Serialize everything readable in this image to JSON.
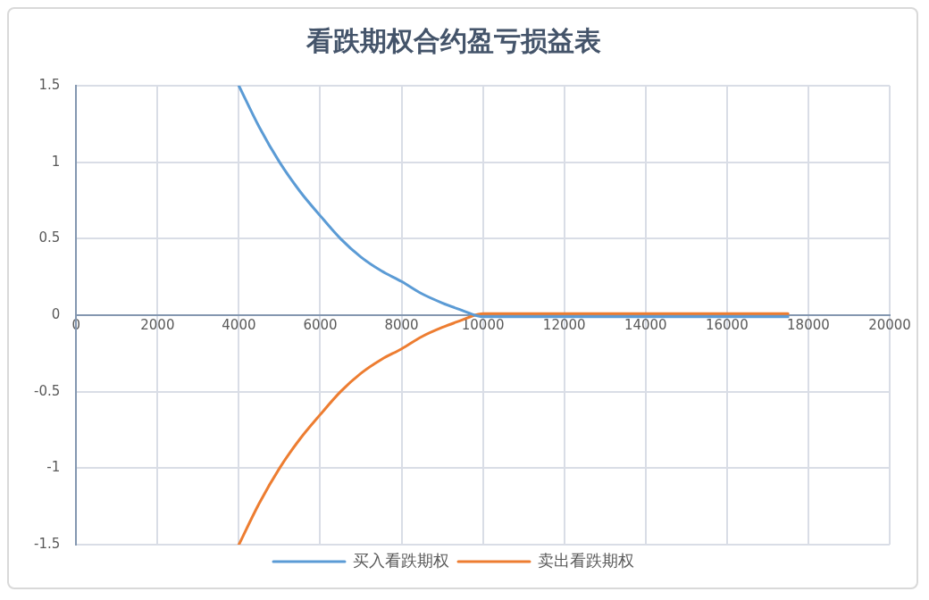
{
  "chart_data": {
    "type": "line",
    "title": "看跌期权合约盈亏损益表",
    "xlim": [
      0,
      20000
    ],
    "xticks": [
      0,
      2000,
      4000,
      6000,
      8000,
      10000,
      12000,
      14000,
      16000,
      18000,
      20000
    ],
    "ylim": [
      -1.5,
      1.5
    ],
    "yticks": [
      -1.5,
      -1,
      -0.5,
      0,
      0.5,
      1,
      1.5
    ],
    "grid": true,
    "legend": "bottom",
    "marker": "none",
    "line_style": "solid",
    "series": [
      {
        "name": "买入看跌期权",
        "color": "#5b9bd5",
        "x": [
          4000,
          4500,
          5000,
          5500,
          6000,
          6500,
          7000,
          7500,
          8000,
          8500,
          9000,
          9500,
          9800,
          10000,
          17500
        ],
        "values": [
          1.5,
          1.23,
          1.0,
          0.81,
          0.65,
          0.5,
          0.38,
          0.29,
          0.22,
          0.14,
          0.08,
          0.03,
          0,
          -0.01,
          -0.01
        ]
      },
      {
        "name": "卖出看跌期权",
        "color": "#ed7d31",
        "x": [
          4000,
          4500,
          5000,
          5500,
          6000,
          6500,
          7000,
          7500,
          8000,
          8500,
          9000,
          9500,
          9800,
          10000,
          17500
        ],
        "values": [
          -1.5,
          -1.23,
          -1.0,
          -0.81,
          -0.65,
          -0.5,
          -0.38,
          -0.29,
          -0.22,
          -0.14,
          -0.08,
          -0.03,
          0,
          0.01,
          0.01
        ]
      }
    ]
  }
}
